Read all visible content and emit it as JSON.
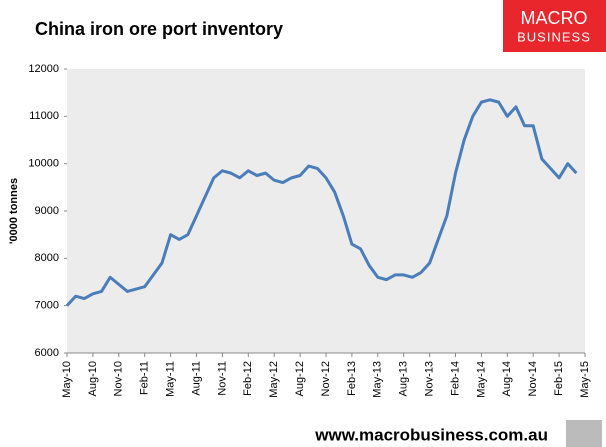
{
  "chart_data": {
    "type": "line",
    "title": "China iron ore port inventory",
    "y_label": "'0000 tonnes",
    "logo": {
      "line1": "MACRO",
      "line2": "BUSINESS"
    },
    "footer": "www.macrobusiness.com.au",
    "categories": [
      "May-10",
      null,
      null,
      "Aug-10",
      null,
      null,
      "Nov-10",
      null,
      null,
      "Feb-11",
      null,
      null,
      "May-11",
      null,
      null,
      "Aug-11",
      null,
      null,
      "Nov-11",
      null,
      null,
      "Feb-12",
      null,
      null,
      "May-12",
      null,
      null,
      "Aug-12",
      null,
      null,
      "Nov-12",
      null,
      null,
      "Feb-13",
      null,
      null,
      "May-13",
      null,
      null,
      "Aug-13",
      null,
      null,
      "Nov-13",
      null,
      null,
      "Feb-14",
      null,
      null,
      "May-14",
      null,
      null,
      "Aug-14",
      null,
      null,
      "Nov-14",
      null,
      null,
      "Feb-15",
      null,
      null,
      "May-15"
    ],
    "series": [
      {
        "name": "China iron ore port inventory",
        "color": "#4a7ebb",
        "values": [
          7000,
          7200,
          7150,
          7250,
          7300,
          7600,
          7450,
          7300,
          7350,
          7400,
          7650,
          7900,
          8500,
          8400,
          8500,
          8900,
          9300,
          9700,
          9850,
          9800,
          9700,
          9850,
          9750,
          9800,
          9650,
          9600,
          9700,
          9750,
          9950,
          9900,
          9700,
          9400,
          8900,
          8300,
          8200,
          7850,
          7600,
          7550,
          7650,
          7650,
          7600,
          7700,
          7900,
          8400,
          8900,
          9800,
          10500,
          11000,
          11300,
          11350,
          11300,
          11000,
          11200,
          10800,
          10800,
          10100,
          9900,
          9700,
          10000,
          9800,
          null
        ]
      }
    ],
    "ylim": [
      6000,
      12000
    ],
    "yticks": [
      6000,
      7000,
      8000,
      9000,
      10000,
      11000,
      12000
    ],
    "grid": false
  }
}
